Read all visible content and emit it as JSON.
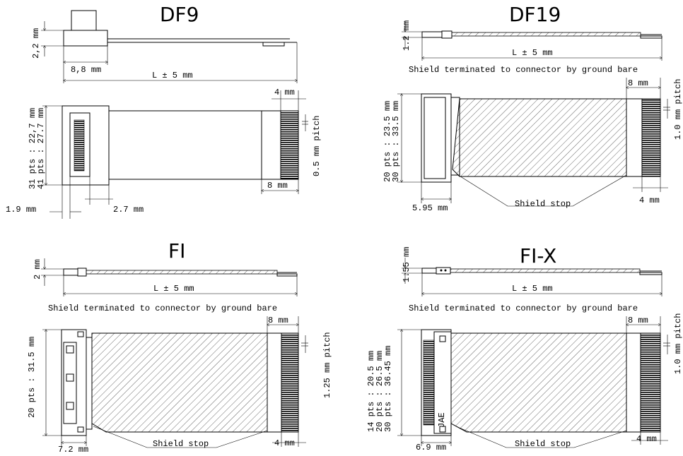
{
  "panels": {
    "df9": {
      "title": "DF9",
      "height_dim": "2,2 mm",
      "width_dim": "8,8 mm",
      "length_dim": "L ± 5 mm",
      "contact_length": "4 mm",
      "pitch": "0.5 mm pitch",
      "width_31": "31 pts : 22,7 mm",
      "width_41": "41 pts : 27.7 mm",
      "stiffener": "8 mm",
      "offset_a": "1.9 mm",
      "offset_b": "2.7 mm"
    },
    "df19": {
      "title": "DF19",
      "height_dim": "1.2 mm",
      "length_dim": "L ± 5 mm",
      "note": "Shield terminated to connector by ground bare",
      "stiffener": "8 mm",
      "pitch": "1.0 mm pitch",
      "width_20": "20 pts : 23.5 mm",
      "width_30": "30 pts : 33.5 mm",
      "offset": "5.95 mm",
      "shield_stop": "Shield stop",
      "contact_length": "4 mm"
    },
    "fi": {
      "title": "FI",
      "height_dim": "2 mm",
      "length_dim": "L ± 5 mm",
      "note": "Shield terminated to connector by ground bare",
      "stiffener": "8 mm",
      "pitch": "1.25 mm pitch",
      "width_20": "20 pts : 31.5 mm",
      "offset": "7.2 mm",
      "shield_stop": "Shield stop",
      "contact_length": "4 mm"
    },
    "fix": {
      "title": "FI-X",
      "height_dim": "1.55 mm",
      "length_dim": "L ± 5 mm",
      "note": "Shield terminated to connector by ground bare",
      "stiffener": "8 mm",
      "pitch": "1.0 mm pitch",
      "width_14": "14 pts : 20.5 mm",
      "width_20": "20 pts : 26.5 mm",
      "width_30": "30 pts : 36.45 mm",
      "offset": "6.9 mm",
      "shield_stop": "Shield stop",
      "contact_length": "4 mm",
      "brand": "JAE"
    }
  }
}
